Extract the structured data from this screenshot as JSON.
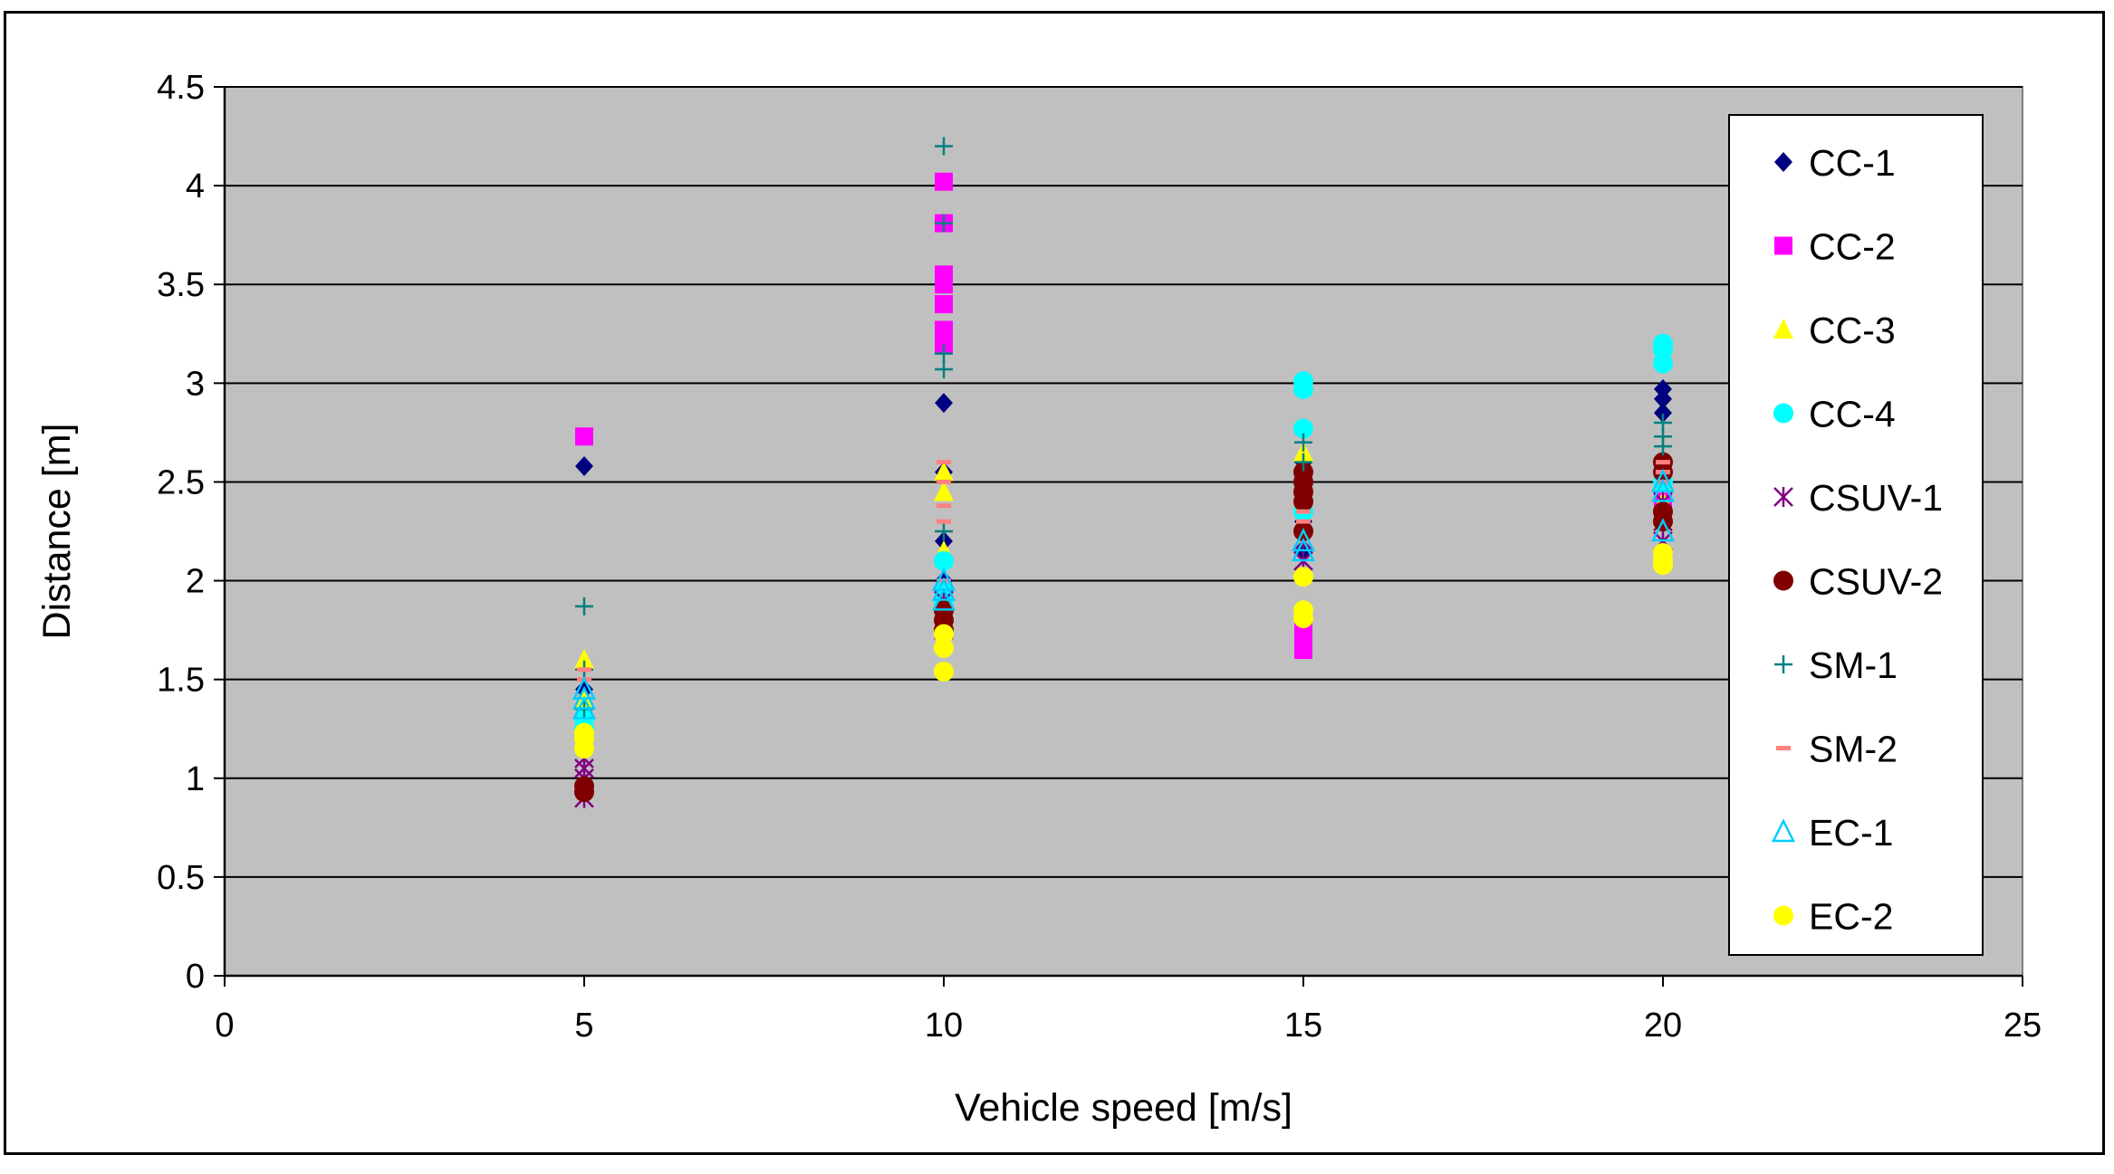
{
  "chart_data": {
    "type": "scatter",
    "title": "",
    "xlabel": "Vehicle speed [m/s]",
    "ylabel": "Distance [m]",
    "xlim": [
      0,
      25
    ],
    "ylim": [
      0,
      4.5
    ],
    "x_ticks": [
      "0",
      "5",
      "10",
      "15",
      "20",
      "25"
    ],
    "y_ticks": [
      "0",
      "0.5",
      "1",
      "1.5",
      "2",
      "2.5",
      "3",
      "3.5",
      "4",
      "4.5"
    ],
    "grid": "horizontal",
    "plot_background": "#c0c0c0",
    "legend_position": "right",
    "series": [
      {
        "name": "CC-1",
        "color": "#000080",
        "marker": "diamond",
        "points": [
          [
            5,
            2.58
          ],
          [
            5,
            1.45
          ],
          [
            10,
            2.9
          ],
          [
            10,
            2.55
          ],
          [
            10,
            2.2
          ],
          [
            10,
            2.1
          ],
          [
            10,
            2.0
          ],
          [
            15,
            2.6
          ],
          [
            15,
            2.55
          ],
          [
            15,
            2.3
          ],
          [
            15,
            2.15
          ],
          [
            20,
            2.97
          ],
          [
            20,
            2.92
          ],
          [
            20,
            2.85
          ],
          [
            20,
            2.5
          ]
        ]
      },
      {
        "name": "CC-2",
        "color": "#ff00ff",
        "marker": "square",
        "points": [
          [
            5,
            2.73
          ],
          [
            10,
            4.02
          ],
          [
            10,
            3.81
          ],
          [
            10,
            3.55
          ],
          [
            10,
            3.5
          ],
          [
            10,
            3.4
          ],
          [
            10,
            3.27
          ],
          [
            10,
            3.2
          ],
          [
            15,
            1.75
          ],
          [
            15,
            1.7
          ],
          [
            15,
            1.65
          ],
          [
            20,
            2.4
          ],
          [
            20,
            2.35
          ]
        ]
      },
      {
        "name": "CC-3",
        "color": "#ffff00",
        "marker": "triangle",
        "points": [
          [
            5,
            1.6
          ],
          [
            5,
            1.4
          ],
          [
            10,
            2.55
          ],
          [
            10,
            2.45
          ],
          [
            10,
            2.15
          ],
          [
            15,
            2.65
          ],
          [
            15,
            2.4
          ],
          [
            15,
            2.3
          ],
          [
            20,
            2.5
          ],
          [
            20,
            2.4
          ],
          [
            20,
            2.3
          ]
        ]
      },
      {
        "name": "CC-4",
        "color": "#00ffff",
        "marker": "circle",
        "points": [
          [
            5,
            1.3
          ],
          [
            5,
            1.25
          ],
          [
            10,
            2.1
          ],
          [
            10,
            1.95
          ],
          [
            10,
            1.9
          ],
          [
            15,
            3.01
          ],
          [
            15,
            2.97
          ],
          [
            15,
            2.77
          ],
          [
            15,
            2.5
          ],
          [
            15,
            2.35
          ],
          [
            20,
            3.2
          ],
          [
            20,
            3.17
          ],
          [
            20,
            3.1
          ],
          [
            20,
            2.5
          ]
        ]
      },
      {
        "name": "CSUV-1",
        "color": "#800080",
        "marker": "star",
        "points": [
          [
            5,
            1.1
          ],
          [
            5,
            1.05
          ],
          [
            5,
            1.0
          ],
          [
            5,
            0.9
          ],
          [
            10,
            1.9
          ],
          [
            10,
            1.8
          ],
          [
            10,
            1.75
          ],
          [
            15,
            2.2
          ],
          [
            15,
            2.1
          ],
          [
            20,
            2.4
          ],
          [
            20,
            2.3
          ],
          [
            20,
            2.2
          ]
        ]
      },
      {
        "name": "CSUV-2",
        "color": "#800000",
        "marker": "circle",
        "points": [
          [
            5,
            0.96
          ],
          [
            5,
            0.93
          ],
          [
            10,
            1.85
          ],
          [
            10,
            1.8
          ],
          [
            10,
            1.75
          ],
          [
            15,
            2.55
          ],
          [
            15,
            2.5
          ],
          [
            15,
            2.45
          ],
          [
            15,
            2.4
          ],
          [
            15,
            2.25
          ],
          [
            20,
            2.6
          ],
          [
            20,
            2.55
          ],
          [
            20,
            2.35
          ],
          [
            20,
            2.3
          ]
        ]
      },
      {
        "name": "SM-1",
        "color": "#008080",
        "marker": "plus",
        "points": [
          [
            5,
            1.87
          ],
          [
            5,
            1.55
          ],
          [
            5,
            1.35
          ],
          [
            10,
            4.2
          ],
          [
            10,
            3.81
          ],
          [
            10,
            3.15
          ],
          [
            10,
            3.07
          ],
          [
            10,
            2.25
          ],
          [
            15,
            2.7
          ],
          [
            15,
            2.6
          ],
          [
            20,
            2.8
          ],
          [
            20,
            2.73
          ],
          [
            20,
            2.68
          ]
        ]
      },
      {
        "name": "SM-2",
        "color": "#ff8080",
        "marker": "dash",
        "points": [
          [
            5,
            1.55
          ],
          [
            5,
            1.5
          ],
          [
            5,
            1.25
          ],
          [
            10,
            2.6
          ],
          [
            10,
            2.5
          ],
          [
            10,
            2.38
          ],
          [
            10,
            2.3
          ],
          [
            10,
            2.0
          ],
          [
            15,
            2.35
          ],
          [
            15,
            2.3
          ],
          [
            20,
            2.6
          ],
          [
            20,
            2.55
          ],
          [
            20,
            2.5
          ]
        ]
      },
      {
        "name": "EC-1",
        "color": "#00ccff",
        "marker": "triangle-open",
        "points": [
          [
            5,
            1.45
          ],
          [
            5,
            1.4
          ],
          [
            5,
            1.35
          ],
          [
            10,
            2.0
          ],
          [
            10,
            1.95
          ],
          [
            10,
            1.9
          ],
          [
            15,
            2.2
          ],
          [
            15,
            2.15
          ],
          [
            20,
            2.5
          ],
          [
            20,
            2.45
          ],
          [
            20,
            2.25
          ]
        ]
      },
      {
        "name": "EC-2",
        "color": "#ffff00",
        "marker": "circle",
        "points": [
          [
            5,
            1.23
          ],
          [
            5,
            1.2
          ],
          [
            5,
            1.15
          ],
          [
            10,
            1.73
          ],
          [
            10,
            1.66
          ],
          [
            10,
            1.54
          ],
          [
            15,
            2.02
          ],
          [
            15,
            1.85
          ],
          [
            15,
            1.81
          ],
          [
            20,
            2.14
          ],
          [
            20,
            2.1
          ],
          [
            20,
            2.08
          ]
        ]
      }
    ]
  }
}
